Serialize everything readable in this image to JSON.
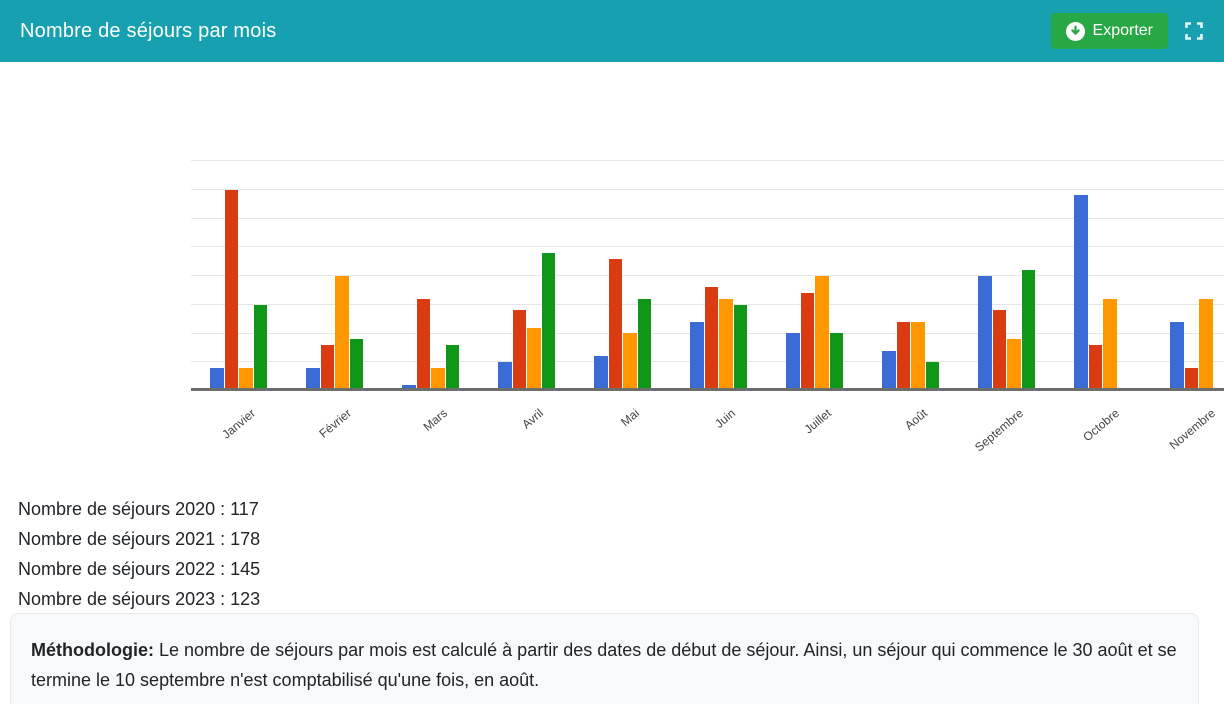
{
  "header": {
    "title": "Nombre de séjours par mois",
    "export_label": "Exporter"
  },
  "colors": {
    "header_teal": "#17a0b0",
    "export_button_green": "#28a745",
    "gridline": "#e6e6e6",
    "axis_line": "#6d6d6d",
    "axis_label": "#444444",
    "body_text": "#212529"
  },
  "chart_data": {
    "type": "bar",
    "title": "",
    "xlabel": "",
    "ylabel": "",
    "categories": [
      "Janvier",
      "Février",
      "Mars",
      "Avril",
      "Mai",
      "Juin",
      "Juillet",
      "Août",
      "Septembre",
      "Octobre",
      "Novembre"
    ],
    "series": [
      {
        "name": "2020",
        "color": "#3b6bd5",
        "values": [
          4,
          4,
          1,
          5,
          6,
          12,
          10,
          7,
          20,
          34,
          12
        ]
      },
      {
        "name": "2021",
        "color": "#da3b13",
        "values": [
          35,
          8,
          16,
          14,
          23,
          18,
          17,
          12,
          14,
          8,
          4
        ]
      },
      {
        "name": "2022",
        "color": "#ff9800",
        "values": [
          4,
          20,
          4,
          11,
          10,
          16,
          20,
          12,
          9,
          16,
          16
        ]
      },
      {
        "name": "2023",
        "color": "#109618",
        "values": [
          15,
          9,
          8,
          24,
          16,
          15,
          10,
          5,
          21,
          0,
          0
        ]
      }
    ],
    "ylim": [
      0,
      40
    ],
    "gridline_step": 5,
    "grid": true,
    "legend_position": "none",
    "x_labels_rotated_deg": -40
  },
  "summary": {
    "lines": [
      "Nombre de séjours 2020 : 117",
      "Nombre de séjours 2021 : 178",
      "Nombre de séjours 2022 : 145",
      "Nombre de séjours 2023 : 123"
    ]
  },
  "methodology": {
    "label": "Méthodologie:",
    "text": "Le nombre de séjours par mois est calculé à partir des dates de début de séjour. Ainsi, un séjour qui commence le 30 août et se termine le 10 septembre n'est comptabilisé qu'une fois, en août."
  }
}
